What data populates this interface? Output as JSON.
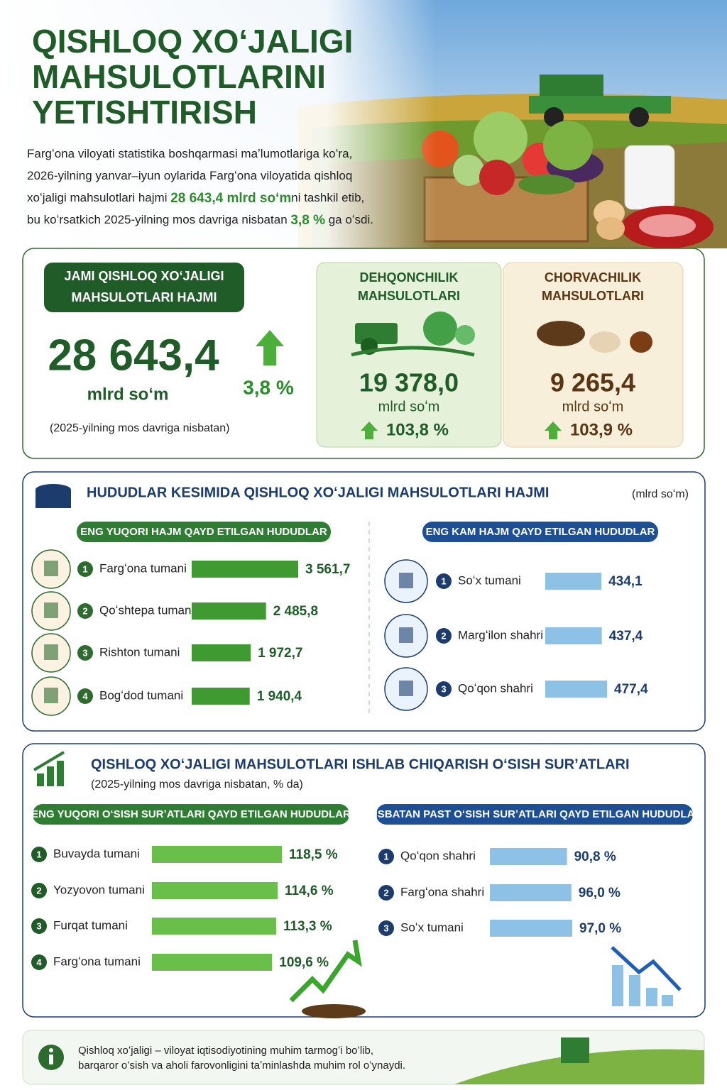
{
  "header": {
    "title": [
      "QISHLOQ XOʻJALIGI",
      "MAHSULOTLARINI",
      "YETISHTIRISH"
    ],
    "intro": [
      [
        {
          "text": "Fargʻona viloyati statistika boshqarmasi maʼlumotlariga koʻra,"
        }
      ],
      [
        {
          "text": "2026-yilning yanvar–iyun oylarida Fargʻona viloyatida qishloq"
        }
      ],
      [
        {
          "text": "xoʻjaligi mahsulotlari hajmi "
        },
        {
          "strong": "28 643,4 mlrd soʻm"
        },
        {
          "text": "ni tashkil etib,"
        }
      ],
      [
        {
          "text": "bu koʻrsatkich 2025-yilning mos davriga nisbatan "
        },
        {
          "strong": "3,8 %"
        },
        {
          "text": " ga oʻsdi."
        }
      ]
    ]
  },
  "summary": {
    "label": [
      "JAMI QISHLOQ XOʻJALIGI",
      "MAHSULOTLARI HAJMI"
    ],
    "value": "28 643,4",
    "unit": "mlrd soʻm",
    "growth": "3,8 %",
    "note": "(2025-yilning mos davriga nisbatan)"
  },
  "sectors": [
    {
      "title": [
        "DEHQONCHILIK",
        "MAHSULOTLARI"
      ],
      "value": "19 378,0",
      "unit": "mlrd soʻm",
      "growth": "103,8 %"
    },
    {
      "title": [
        "CHORVACHILIK",
        "MAHSULOTLARI"
      ],
      "value": "9 265,4",
      "unit": "mlrd soʻm",
      "growth": "103,9 %"
    }
  ],
  "regions": {
    "title": "HUDUDLAR KESIMIDA QISHLOQ XOʻJALIGI MAHSULOTLARI HAJMI",
    "unit": "(mlrd soʻm)",
    "top": {
      "title": "ENG YUQORI HAJM QAYD ETILGAN HUDUDLAR",
      "ranks": [
        1,
        2,
        3,
        4
      ],
      "categories": [
        "Fargʻona tumani",
        "Qoʻshtepa tumani",
        "Rishton tumani",
        "Bogʻdod tumani"
      ],
      "values": [
        3561.7,
        2485.8,
        1972.7,
        1940.4
      ],
      "value_labels": [
        "3 561,7",
        "2 485,8",
        "1 972,7",
        "1 940,4"
      ]
    },
    "low": {
      "title": "ENG KAM HAJM QAYD ETILGAN HUDUDLAR",
      "ranks": [
        1,
        2,
        3
      ],
      "categories": [
        "Soʻx tumani",
        "Margʻilon shahri",
        "Qoʻqon shahri"
      ],
      "values": [
        434.1,
        437.4,
        477.4
      ],
      "value_labels": [
        "434,1",
        "437,4",
        "477,4"
      ]
    }
  },
  "growth": {
    "title": "QISHLOQ XOʻJALIGI MAHSULOTLARI ISHLAB CHIQARISH OʻSISH SURʼATLARI",
    "subtitle": "(2025-yilning mos davriga nisbatan, % da)",
    "top": {
      "title": "ENG YUQORI OʻSISH SURʼATLARI QAYD ETILGAN HUDUDLAR",
      "ranks": [
        1,
        2,
        3,
        4
      ],
      "categories": [
        "Buvayda tumani",
        "Yozyovon tumani",
        "Furqat tumani",
        "Fargʻona tumani"
      ],
      "values": [
        118.5,
        114.6,
        113.3,
        109.6
      ],
      "value_labels": [
        "118,5 %",
        "114,6 %",
        "113,3 %",
        "109,6 %"
      ]
    },
    "low": {
      "title": "NISBATAN PAST OʻSISH SURʼATLARI QAYD ETILGAN HUDUDLAR",
      "ranks": [
        1,
        2,
        3
      ],
      "categories": [
        "Qoʻqon shahri",
        "Fargʻona shahri",
        "Soʻx tumani"
      ],
      "values": [
        90.8,
        96.0,
        97.0
      ],
      "value_labels": [
        "90,8 %",
        "96,0 %",
        "97,0 %"
      ]
    }
  },
  "footer": {
    "text": [
      "Qishloq xoʻjaligi – viloyat iqtisodiyotining muhim tarmogʻi boʻlib,",
      "barqaror oʻsish va aholi farovonligini taʼminlashda muhim rol oʻynaydi."
    ]
  }
}
